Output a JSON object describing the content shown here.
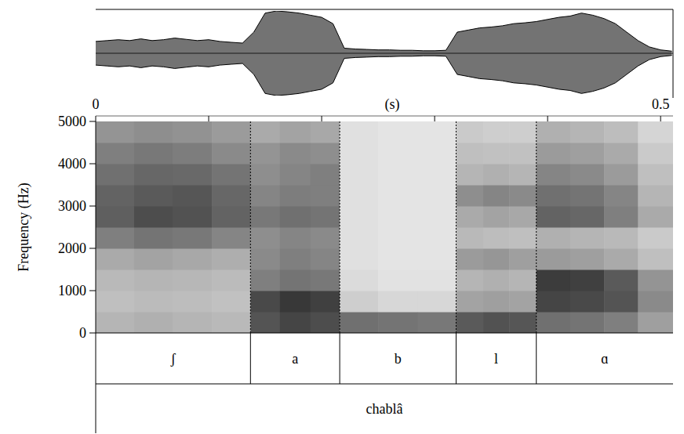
{
  "chart_data": [
    {
      "type": "waveform",
      "xlabel": "(s)",
      "xlim": [
        0,
        0.511
      ],
      "xticks": [
        0,
        0.5
      ],
      "xticks_minor": [
        0.1,
        0.2,
        0.3,
        0.4
      ],
      "ylim": [
        -1,
        1
      ],
      "tick_labels": "x",
      "color": "#000000",
      "x": [
        0,
        0.01,
        0.02,
        0.03,
        0.04,
        0.05,
        0.06,
        0.07,
        0.08,
        0.09,
        0.1,
        0.11,
        0.12,
        0.13,
        0.14,
        0.15,
        0.16,
        0.17,
        0.18,
        0.19,
        0.2,
        0.21,
        0.22,
        0.23,
        0.24,
        0.25,
        0.26,
        0.27,
        0.28,
        0.29,
        0.3,
        0.31,
        0.32,
        0.33,
        0.34,
        0.35,
        0.36,
        0.37,
        0.38,
        0.39,
        0.4,
        0.41,
        0.42,
        0.43,
        0.44,
        0.45,
        0.46,
        0.47,
        0.48,
        0.49,
        0.5,
        0.51
      ],
      "values": [
        0.28,
        0.3,
        0.32,
        0.3,
        0.34,
        0.3,
        0.32,
        0.36,
        0.33,
        0.3,
        0.32,
        0.28,
        0.26,
        0.24,
        0.5,
        0.95,
        1,
        0.98,
        0.95,
        0.9,
        0.85,
        0.7,
        0.12,
        0.1,
        0.09,
        0.08,
        0.08,
        0.07,
        0.07,
        0.06,
        0.06,
        0.07,
        0.5,
        0.55,
        0.6,
        0.62,
        0.65,
        0.7,
        0.72,
        0.75,
        0.8,
        0.85,
        0.88,
        0.95,
        0.9,
        0.82,
        0.7,
        0.5,
        0.3,
        0.15,
        0.08,
        0.05
      ]
    },
    {
      "type": "spectrogram",
      "ylabel": "Frequency (Hz)",
      "xlim": [
        0,
        0.511
      ],
      "ylim": [
        0,
        5000
      ],
      "yticks": [
        0,
        1000,
        2000,
        3000,
        4000,
        5000
      ],
      "tick_labels": "y",
      "time_edges": [
        0,
        0.034,
        0.068,
        0.103,
        0.137,
        0.163,
        0.19,
        0.216,
        0.25,
        0.285,
        0.319,
        0.343,
        0.366,
        0.39,
        0.42,
        0.45,
        0.48,
        0.511
      ],
      "freq_edges": [
        0,
        500,
        1000,
        1500,
        2000,
        2500,
        3000,
        3500,
        4000,
        4500,
        5000
      ],
      "cells": [
        [
          30,
          25,
          28,
          35,
          55,
          70,
          68,
          62,
          55,
          45
        ],
        [
          32,
          27,
          30,
          38,
          60,
          78,
          72,
          66,
          58,
          48
        ],
        [
          30,
          26,
          29,
          36,
          58,
          76,
          74,
          65,
          56,
          46
        ],
        [
          28,
          24,
          27,
          33,
          52,
          68,
          66,
          60,
          50,
          42
        ],
        [
          75,
          80,
          55,
          50,
          48,
          58,
          52,
          48,
          45,
          35
        ],
        [
          82,
          88,
          60,
          55,
          52,
          62,
          56,
          52,
          50,
          38
        ],
        [
          78,
          84,
          58,
          52,
          50,
          60,
          55,
          55,
          48,
          36
        ],
        [
          62,
          18,
          12,
          10,
          10,
          10,
          10,
          10,
          10,
          10
        ],
        [
          60,
          14,
          9,
          8,
          8,
          8,
          8,
          8,
          8,
          8
        ],
        [
          58,
          14,
          9,
          8,
          8,
          8,
          8,
          8,
          8,
          8
        ],
        [
          72,
          38,
          30,
          42,
          28,
          35,
          48,
          30,
          25,
          20
        ],
        [
          76,
          40,
          32,
          44,
          26,
          38,
          52,
          32,
          24,
          18
        ],
        [
          74,
          38,
          30,
          40,
          25,
          36,
          50,
          30,
          24,
          18
        ],
        [
          62,
          82,
          86,
          42,
          32,
          68,
          62,
          52,
          42,
          32
        ],
        [
          60,
          80,
          84,
          40,
          30,
          66,
          60,
          50,
          40,
          30
        ],
        [
          55,
          75,
          72,
          35,
          28,
          55,
          52,
          42,
          35,
          26
        ],
        [
          40,
          50,
          45,
          25,
          20,
          35,
          30,
          25,
          20,
          15
        ]
      ],
      "cell_range": [
        0,
        100
      ]
    }
  ],
  "textgrid": {
    "tiers": [
      {
        "intervals": [
          {
            "start": 0,
            "end": 0.137,
            "label": "ʃ"
          },
          {
            "start": 0.137,
            "end": 0.216,
            "label": "a"
          },
          {
            "start": 0.216,
            "end": 0.319,
            "label": "b"
          },
          {
            "start": 0.319,
            "end": 0.39,
            "label": "l"
          },
          {
            "start": 0.39,
            "end": 0.511,
            "label": "ɑ"
          }
        ]
      },
      {
        "intervals": [
          {
            "start": 0,
            "end": 0.511,
            "label": "chablâ"
          }
        ]
      }
    ]
  }
}
